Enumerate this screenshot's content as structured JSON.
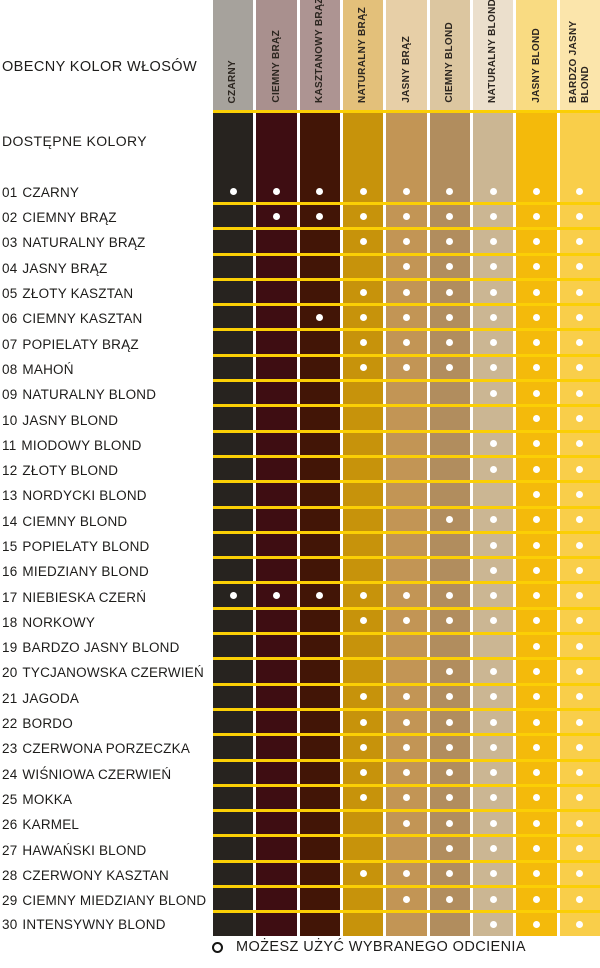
{
  "header": {
    "current_color_label": "OBECNY KOLOR WŁOSÓW",
    "available_colors_label": "DOSTĘPNE KOLORY"
  },
  "columns": [
    {
      "label": "CZARNY",
      "header_color": "#a6a29c",
      "body_color": "#27231f"
    },
    {
      "label": "CIEMNY BRĄZ",
      "header_color": "#a9908e",
      "body_color": "#3e0d12"
    },
    {
      "label": "KASZTANOWY BRĄZ",
      "header_color": "#ad9492",
      "body_color": "#421506"
    },
    {
      "label": "NATURALNY BRĄZ",
      "header_color": "#e3c07a",
      "body_color": "#c7930b"
    },
    {
      "label": "JASNY BRĄZ",
      "header_color": "#e7cfa7",
      "body_color": "#c29555"
    },
    {
      "label": "CIEMNY BLOND",
      "header_color": "#dcc6a0",
      "body_color": "#b18d5e"
    },
    {
      "label": "NATURALNY BLOND",
      "header_color": "#ebdfcc",
      "body_color": "#cbb693"
    },
    {
      "label": "JASNY BLOND",
      "header_color": "#f9db82",
      "body_color": "#f4ba0b"
    },
    {
      "label": "BARDZO JASNY BLOND",
      "header_color": "#fbe5ab",
      "body_color": "#f9ce4a"
    }
  ],
  "rows": [
    {
      "num": "01",
      "name": "CZARNY",
      "dots": [
        1,
        1,
        1,
        1,
        1,
        1,
        1,
        1,
        1
      ]
    },
    {
      "num": "02",
      "name": "CIEMNY BRĄZ",
      "dots": [
        0,
        1,
        1,
        1,
        1,
        1,
        1,
        1,
        1
      ]
    },
    {
      "num": "03",
      "name": "NATURALNY BRĄZ",
      "dots": [
        0,
        0,
        0,
        1,
        1,
        1,
        1,
        1,
        1
      ]
    },
    {
      "num": "04",
      "name": "JASNY BRĄZ",
      "dots": [
        0,
        0,
        0,
        0,
        1,
        1,
        1,
        1,
        1
      ]
    },
    {
      "num": "05",
      "name": "ZŁOTY KASZTAN",
      "dots": [
        0,
        0,
        0,
        1,
        1,
        1,
        1,
        1,
        1
      ]
    },
    {
      "num": "06",
      "name": "CIEMNY KASZTAN",
      "dots": [
        0,
        0,
        1,
        1,
        1,
        1,
        1,
        1,
        1
      ]
    },
    {
      "num": "07",
      "name": "POPIELATY BRĄZ",
      "dots": [
        0,
        0,
        0,
        1,
        1,
        1,
        1,
        1,
        1
      ]
    },
    {
      "num": "08",
      "name": "MAHOŃ",
      "dots": [
        0,
        0,
        0,
        1,
        1,
        1,
        1,
        1,
        1
      ]
    },
    {
      "num": "09",
      "name": "NATURALNY BLOND",
      "dots": [
        0,
        0,
        0,
        0,
        0,
        0,
        1,
        1,
        1
      ]
    },
    {
      "num": "10",
      "name": "JASNY BLOND",
      "dots": [
        0,
        0,
        0,
        0,
        0,
        0,
        0,
        1,
        1
      ]
    },
    {
      "num": "11",
      "name": "MIODOWY BLOND",
      "dots": [
        0,
        0,
        0,
        0,
        0,
        0,
        1,
        1,
        1
      ]
    },
    {
      "num": "12",
      "name": "ZŁOTY BLOND",
      "dots": [
        0,
        0,
        0,
        0,
        0,
        0,
        1,
        1,
        1
      ]
    },
    {
      "num": "13",
      "name": "NORDYCKI BLOND",
      "dots": [
        0,
        0,
        0,
        0,
        0,
        0,
        0,
        1,
        1
      ]
    },
    {
      "num": "14",
      "name": "CIEMNY BLOND",
      "dots": [
        0,
        0,
        0,
        0,
        0,
        1,
        1,
        1,
        1
      ]
    },
    {
      "num": "15",
      "name": "POPIELATY BLOND",
      "dots": [
        0,
        0,
        0,
        0,
        0,
        0,
        1,
        1,
        1
      ]
    },
    {
      "num": "16",
      "name": "MIEDZIANY BLOND",
      "dots": [
        0,
        0,
        0,
        0,
        0,
        0,
        1,
        1,
        1
      ]
    },
    {
      "num": "17",
      "name": "NIEBIESKA CZERŃ",
      "dots": [
        1,
        1,
        1,
        1,
        1,
        1,
        1,
        1,
        1
      ]
    },
    {
      "num": "18",
      "name": "NORKOWY",
      "dots": [
        0,
        0,
        0,
        1,
        1,
        1,
        1,
        1,
        1
      ]
    },
    {
      "num": "19",
      "name": "BARDZO JASNY BLOND",
      "dots": [
        0,
        0,
        0,
        0,
        0,
        0,
        0,
        1,
        1
      ]
    },
    {
      "num": "20",
      "name": "TYCJANOWSKA CZERWIEŃ",
      "dots": [
        0,
        0,
        0,
        0,
        0,
        1,
        1,
        1,
        1
      ]
    },
    {
      "num": "21",
      "name": "JAGODA",
      "dots": [
        0,
        0,
        0,
        1,
        1,
        1,
        1,
        1,
        1
      ]
    },
    {
      "num": "22",
      "name": "BORDO",
      "dots": [
        0,
        0,
        0,
        1,
        1,
        1,
        1,
        1,
        1
      ]
    },
    {
      "num": "23",
      "name": "CZERWONA PORZECZKA",
      "dots": [
        0,
        0,
        0,
        1,
        1,
        1,
        1,
        1,
        1
      ]
    },
    {
      "num": "24",
      "name": "WIŚNIOWA CZERWIEŃ",
      "dots": [
        0,
        0,
        0,
        1,
        1,
        1,
        1,
        1,
        1
      ]
    },
    {
      "num": "25",
      "name": "MOKKA",
      "dots": [
        0,
        0,
        0,
        1,
        1,
        1,
        1,
        1,
        1
      ]
    },
    {
      "num": "26",
      "name": "KARMEL",
      "dots": [
        0,
        0,
        0,
        0,
        1,
        1,
        1,
        1,
        1
      ]
    },
    {
      "num": "27",
      "name": "HAWAŃSKI BLOND",
      "dots": [
        0,
        0,
        0,
        0,
        0,
        1,
        1,
        1,
        1
      ]
    },
    {
      "num": "28",
      "name": "CZERWONY KASZTAN",
      "dots": [
        0,
        0,
        0,
        1,
        1,
        1,
        1,
        1,
        1
      ]
    },
    {
      "num": "29",
      "name": "CIEMNY MIEDZIANY BLOND",
      "dots": [
        0,
        0,
        0,
        0,
        1,
        1,
        1,
        1,
        1
      ]
    },
    {
      "num": "30",
      "name": "INTENSYWNY BLOND",
      "dots": [
        0,
        0,
        0,
        0,
        0,
        0,
        1,
        1,
        1
      ]
    }
  ],
  "legend": {
    "text": "MOŻESZ UŻYĆ WYBRANEGO ODCIENIA"
  },
  "colors": {
    "separator": "#fbcf05",
    "dot": "#ffffff"
  },
  "chart_data": {
    "type": "table",
    "title": "OBECNY KOLOR WŁOSÓW / DOSTĘPNE KOLORY",
    "columns": [
      "CZARNY",
      "CIEMNY BRĄZ",
      "KASZTANOWY BRĄZ",
      "NATURALNY BRĄZ",
      "JASNY BRĄZ",
      "CIEMNY BLOND",
      "NATURALNY BLOND",
      "JASNY BLOND",
      "BARDZO JASNY BLOND"
    ],
    "rows": [
      "01 CZARNY",
      "02 CIEMNY BRĄZ",
      "03 NATURALNY BRĄZ",
      "04 JASNY BRĄZ",
      "05 ZŁOTY KASZTAN",
      "06 CIEMNY KASZTAN",
      "07 POPIELATY BRĄZ",
      "08 MAHOŃ",
      "09 NATURALNY BLOND",
      "10 JASNY BLOND",
      "11 MIODOWY BLOND",
      "12 ZŁOTY BLOND",
      "13 NORDYCKI BLOND",
      "14 CIEMNY BLOND",
      "15 POPIELATY BLOND",
      "16 MIEDZIANY BLOND",
      "17 NIEBIESKA CZERŃ",
      "18 NORKOWY",
      "19 BARDZO JASNY BLOND",
      "20 TYCJANOWSKA CZERWIEŃ",
      "21 JAGODA",
      "22 BORDO",
      "23 CZERWONA PORZECZKA",
      "24 WIŚNIOWA CZERWIEŃ",
      "25 MOKKA",
      "26 KARMEL",
      "27 HAWAŃSKI BLOND",
      "28 CZERWONY KASZTAN",
      "29 CIEMNY MIEDZIANY BLOND",
      "30 INTENSYWNY BLOND"
    ],
    "matrix": [
      [
        1,
        1,
        1,
        1,
        1,
        1,
        1,
        1,
        1
      ],
      [
        0,
        1,
        1,
        1,
        1,
        1,
        1,
        1,
        1
      ],
      [
        0,
        0,
        0,
        1,
        1,
        1,
        1,
        1,
        1
      ],
      [
        0,
        0,
        0,
        0,
        1,
        1,
        1,
        1,
        1
      ],
      [
        0,
        0,
        0,
        1,
        1,
        1,
        1,
        1,
        1
      ],
      [
        0,
        0,
        1,
        1,
        1,
        1,
        1,
        1,
        1
      ],
      [
        0,
        0,
        0,
        1,
        1,
        1,
        1,
        1,
        1
      ],
      [
        0,
        0,
        0,
        1,
        1,
        1,
        1,
        1,
        1
      ],
      [
        0,
        0,
        0,
        0,
        0,
        0,
        1,
        1,
        1
      ],
      [
        0,
        0,
        0,
        0,
        0,
        0,
        0,
        1,
        1
      ],
      [
        0,
        0,
        0,
        0,
        0,
        0,
        1,
        1,
        1
      ],
      [
        0,
        0,
        0,
        0,
        0,
        0,
        1,
        1,
        1
      ],
      [
        0,
        0,
        0,
        0,
        0,
        0,
        0,
        1,
        1
      ],
      [
        0,
        0,
        0,
        0,
        0,
        1,
        1,
        1,
        1
      ],
      [
        0,
        0,
        0,
        0,
        0,
        0,
        1,
        1,
        1
      ],
      [
        0,
        0,
        0,
        0,
        0,
        0,
        1,
        1,
        1
      ],
      [
        1,
        1,
        1,
        1,
        1,
        1,
        1,
        1,
        1
      ],
      [
        0,
        0,
        0,
        1,
        1,
        1,
        1,
        1,
        1
      ],
      [
        0,
        0,
        0,
        0,
        0,
        0,
        0,
        1,
        1
      ],
      [
        0,
        0,
        0,
        0,
        0,
        1,
        1,
        1,
        1
      ],
      [
        0,
        0,
        0,
        1,
        1,
        1,
        1,
        1,
        1
      ],
      [
        0,
        0,
        0,
        1,
        1,
        1,
        1,
        1,
        1
      ],
      [
        0,
        0,
        0,
        1,
        1,
        1,
        1,
        1,
        1
      ],
      [
        0,
        0,
        0,
        1,
        1,
        1,
        1,
        1,
        1
      ],
      [
        0,
        0,
        0,
        1,
        1,
        1,
        1,
        1,
        1
      ],
      [
        0,
        0,
        0,
        0,
        1,
        1,
        1,
        1,
        1
      ],
      [
        0,
        0,
        0,
        0,
        0,
        1,
        1,
        1,
        1
      ],
      [
        0,
        0,
        0,
        1,
        1,
        1,
        1,
        1,
        1
      ],
      [
        0,
        0,
        0,
        0,
        1,
        1,
        1,
        1,
        1
      ],
      [
        0,
        0,
        0,
        0,
        0,
        0,
        1,
        1,
        1
      ]
    ],
    "legend": "O = MOŻESZ UŻYĆ WYBRANEGO ODCIENIA",
    "dot_marker": "white filled circle"
  }
}
